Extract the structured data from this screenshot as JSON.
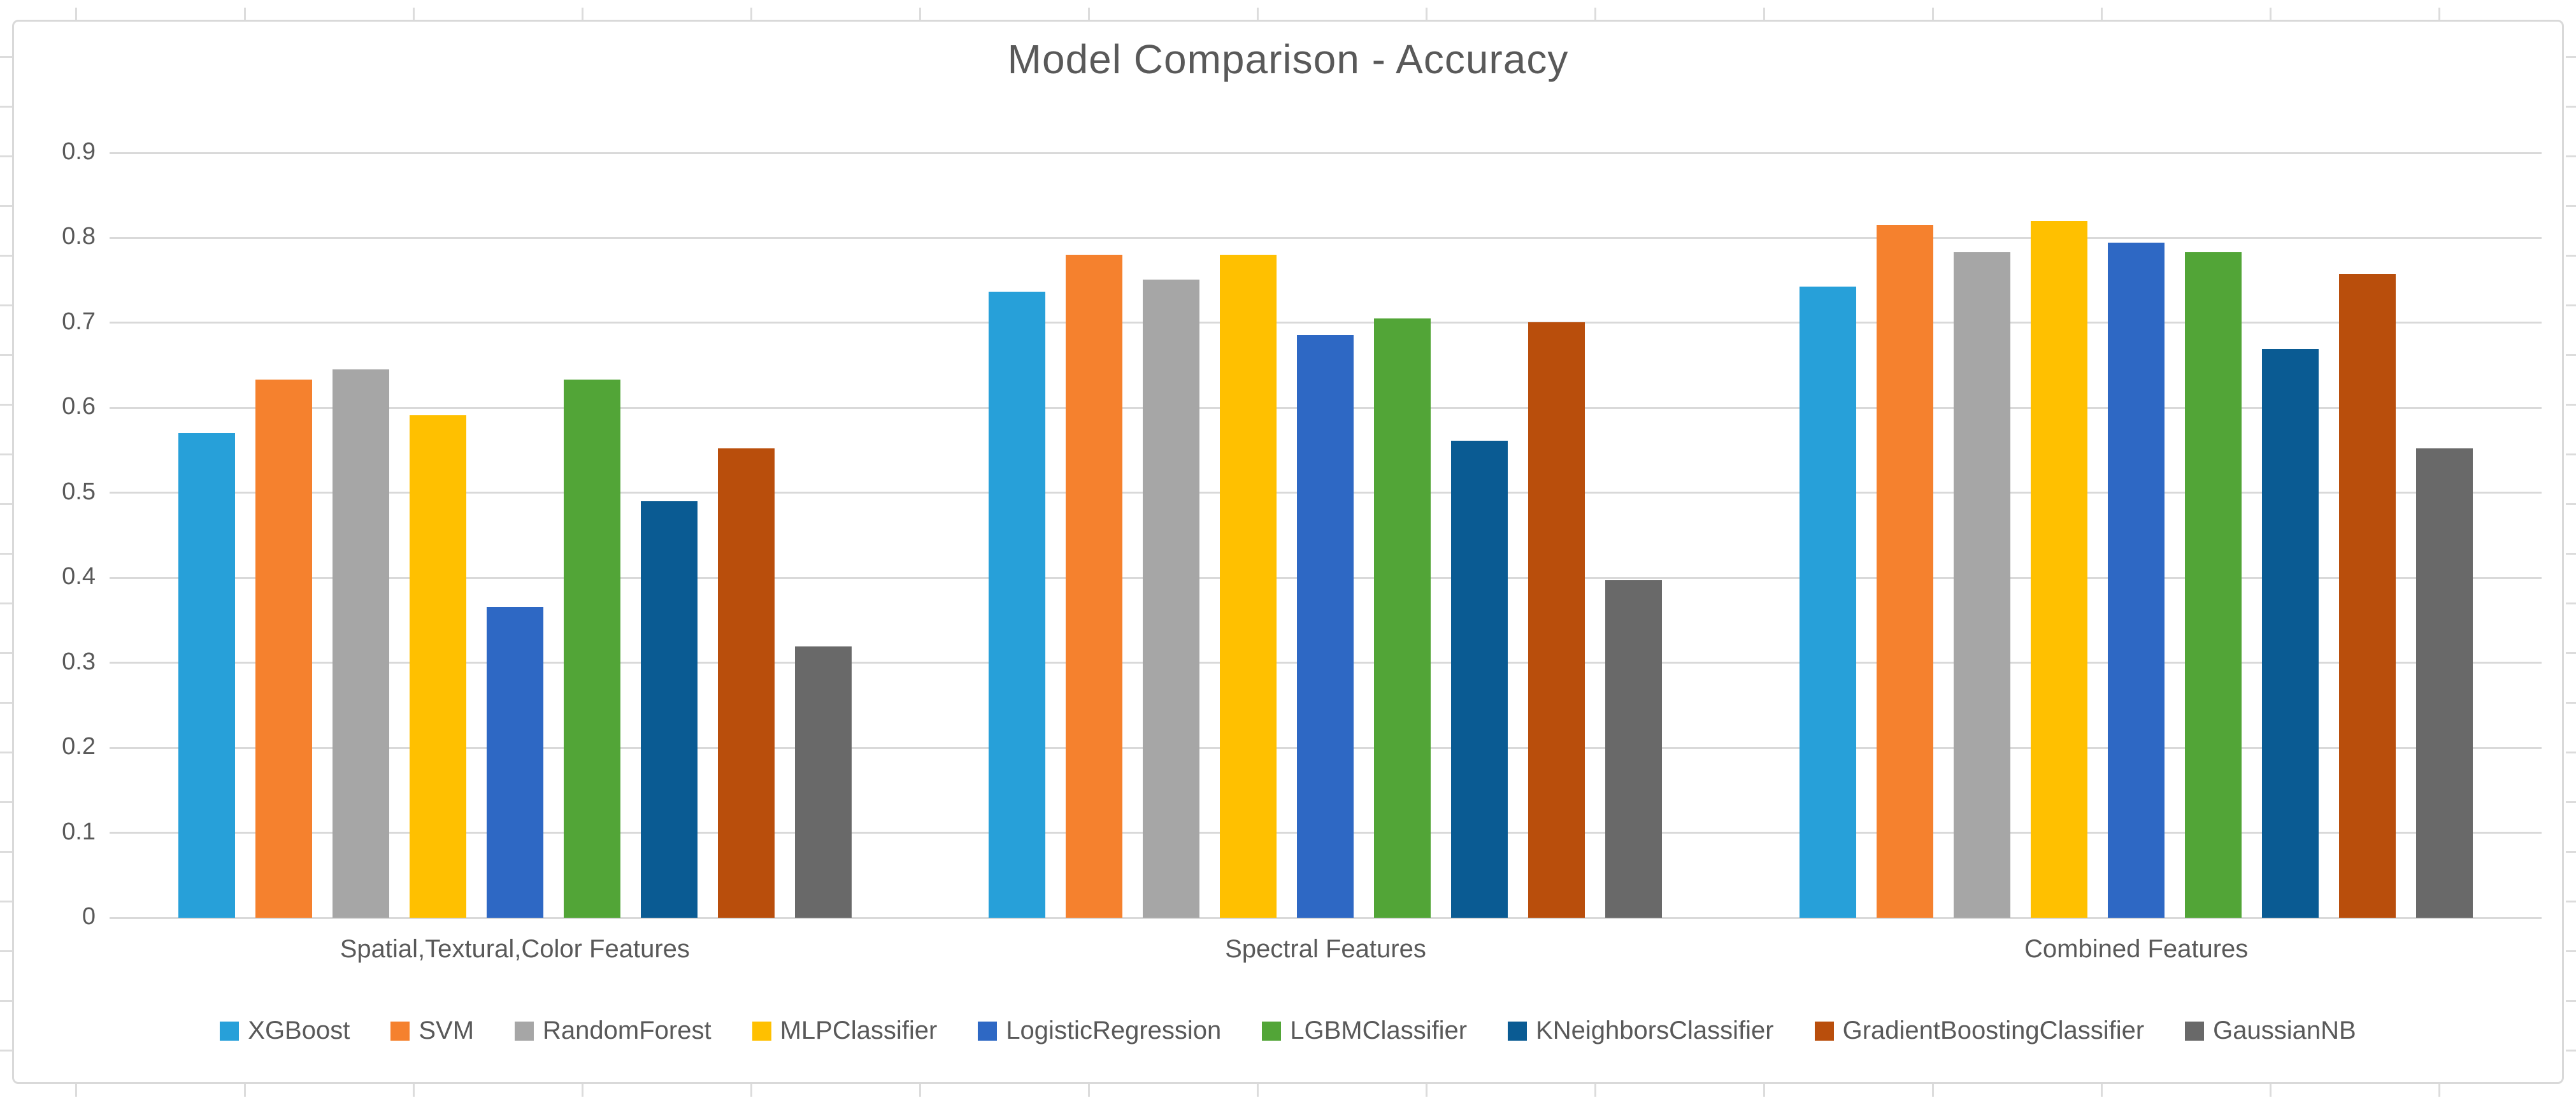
{
  "app": {
    "background": "#FFFFFF",
    "chart_border_color": "#D9D9D9"
  },
  "chart_data": {
    "type": "bar",
    "title": "Model Comparison - Accuracy",
    "categories": [
      "Spatial,Textural,Color Features",
      "Spectral Features",
      "Combined Features"
    ],
    "series": [
      {
        "name": "XGBoost",
        "color": "#27A0D9",
        "values": [
          0.57,
          0.737,
          0.743
        ]
      },
      {
        "name": "SVM",
        "color": "#F5812E",
        "values": [
          0.633,
          0.78,
          0.815
        ]
      },
      {
        "name": "RandomForest",
        "color": "#A6A6A6",
        "values": [
          0.645,
          0.751,
          0.783
        ]
      },
      {
        "name": "MLPClassifier",
        "color": "#FFC000",
        "values": [
          0.591,
          0.78,
          0.82
        ]
      },
      {
        "name": "LogisticRegression",
        "color": "#2E68C4",
        "values": [
          0.366,
          0.686,
          0.794
        ]
      },
      {
        "name": "LGBMClassifier",
        "color": "#52A537",
        "values": [
          0.633,
          0.705,
          0.783
        ]
      },
      {
        "name": "KNeighborsClassifier",
        "color": "#0A5B93",
        "values": [
          0.49,
          0.561,
          0.669
        ]
      },
      {
        "name": "GradientBoostingClassifier",
        "color": "#B94E0C",
        "values": [
          0.552,
          0.701,
          0.758
        ]
      },
      {
        "name": "GaussianNB",
        "color": "#696969",
        "values": [
          0.319,
          0.397,
          0.552
        ]
      }
    ],
    "ylim": [
      0,
      0.9
    ],
    "yticks": [
      "0",
      "0.1",
      "0.2",
      "0.3",
      "0.4",
      "0.5",
      "0.6",
      "0.7",
      "0.8",
      "0.9"
    ],
    "grid": true,
    "legend_position": "bottom",
    "text_color": "#595959",
    "grid_color": "#D9D9D9"
  }
}
